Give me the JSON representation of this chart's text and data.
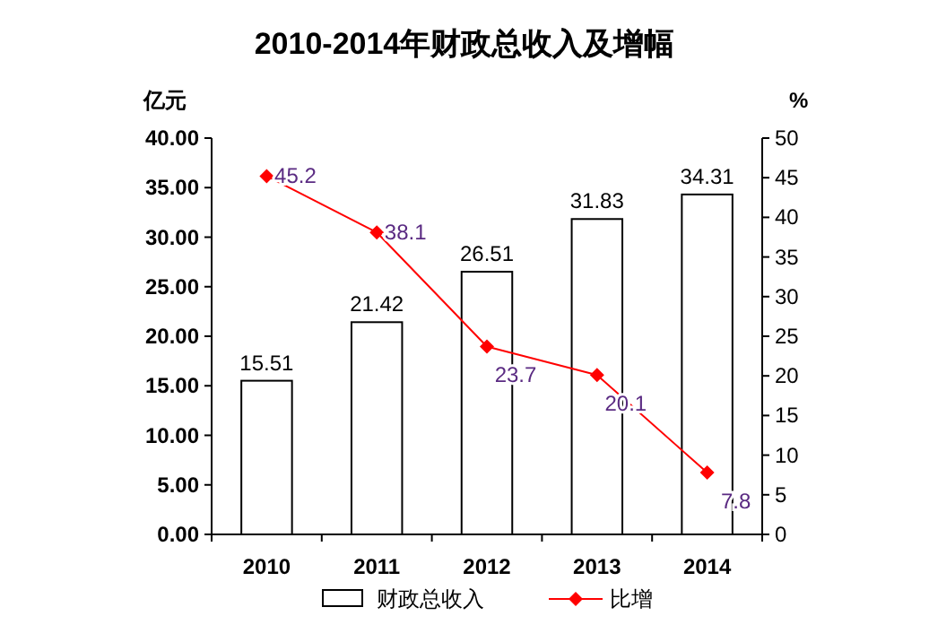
{
  "chart_data": {
    "type": "bar",
    "title": "2010-2014年财政总收入及增幅",
    "ylabel": "亿元",
    "y2label": "%",
    "categories": [
      "2010",
      "2011",
      "2012",
      "2013",
      "2014"
    ],
    "series": [
      {
        "name": "财政总收入",
        "color": "#ffffff",
        "values": [
          15.51,
          21.42,
          26.51,
          31.83,
          34.31
        ]
      },
      {
        "name": "比增",
        "type": "line",
        "axis": "y2",
        "color": "#ff0000",
        "marker": "diamond",
        "values": [
          45.2,
          38.1,
          23.7,
          20.1,
          7.8
        ]
      }
    ],
    "ylim": [
      0,
      40
    ],
    "yticks": [
      {
        "value": 0,
        "label": "0.00"
      },
      {
        "value": 5,
        "label": "5.00"
      },
      {
        "value": 10,
        "label": "10.00"
      },
      {
        "value": 15,
        "label": "15.00"
      },
      {
        "value": 20,
        "label": "20.00"
      },
      {
        "value": 25,
        "label": "25.00"
      },
      {
        "value": 30,
        "label": "30.00"
      },
      {
        "value": 35,
        "label": "35.00"
      },
      {
        "value": 40,
        "label": "40.00"
      }
    ],
    "y2lim": [
      0,
      50
    ],
    "y2ticks": [
      0,
      5,
      10,
      15,
      20,
      25,
      30,
      35,
      40,
      45,
      50
    ],
    "data_labels": true,
    "legend": "bottom",
    "grid": false
  }
}
